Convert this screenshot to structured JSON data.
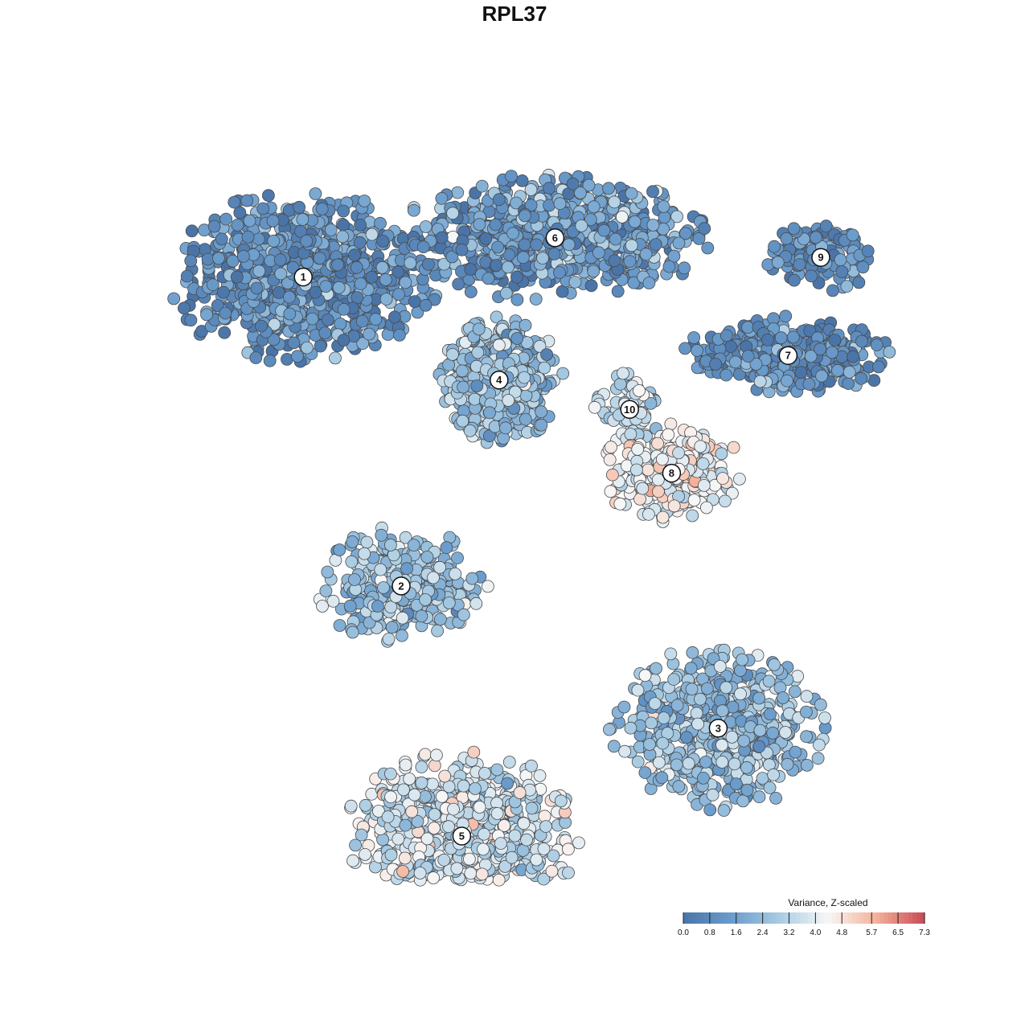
{
  "chart_data": {
    "type": "scatter",
    "title": "RPL37",
    "legend": {
      "title": "Variance, Z-scaled",
      "ticks": [
        "0.0",
        "0.8",
        "1.6",
        "2.4",
        "3.2",
        "4.0",
        "4.8",
        "5.7",
        "6.5",
        "7.3"
      ],
      "range": [
        0.0,
        7.3
      ],
      "colors": [
        "#4a74a8",
        "#6a9ccc",
        "#a9cce3",
        "#f7f7f7",
        "#f4b199",
        "#c94a57"
      ],
      "placement": "bottom-right"
    },
    "clusters": [
      {
        "label": "1",
        "x": -20.5,
        "y": 22.0,
        "mean": 1.1,
        "spread": 7.0,
        "count": 900
      },
      {
        "label": "6",
        "x": 6.5,
        "y": 26.0,
        "mean": 1.4,
        "spread": 9.0,
        "count": 700
      },
      {
        "label": "9",
        "x": 35.0,
        "y": 24.0,
        "mean": 1.0,
        "spread": 3.0,
        "count": 160
      },
      {
        "label": "7",
        "x": 31.5,
        "y": 14.0,
        "mean": 1.0,
        "spread": 6.0,
        "count": 350
      },
      {
        "label": "4",
        "x": 0.5,
        "y": 11.5,
        "mean": 2.6,
        "spread": 4.0,
        "count": 550
      },
      {
        "label": "10",
        "x": 14.5,
        "y": 8.5,
        "mean": 3.4,
        "spread": 2.0,
        "count": 90
      },
      {
        "label": "8",
        "x": 19.0,
        "y": 2.0,
        "mean": 4.3,
        "spread": 3.5,
        "count": 260
      },
      {
        "label": "2",
        "x": -10.0,
        "y": -9.5,
        "mean": 2.6,
        "spread": 6.0,
        "count": 330
      },
      {
        "label": "3",
        "x": 24.0,
        "y": -24.0,
        "mean": 2.6,
        "spread": 5.0,
        "count": 650
      },
      {
        "label": "5",
        "x": -3.5,
        "y": -35.0,
        "mean": 3.6,
        "spread": 5.0,
        "count": 800
      }
    ]
  }
}
